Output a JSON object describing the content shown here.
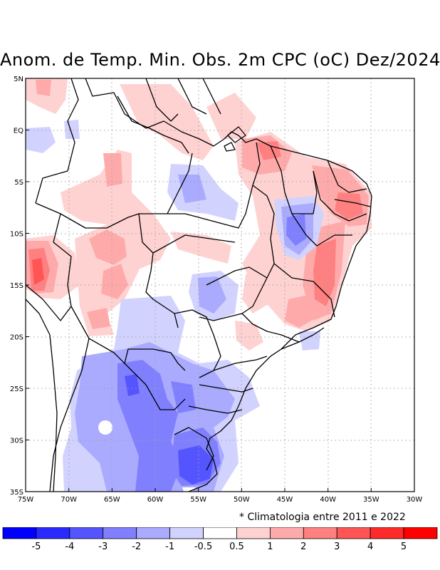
{
  "title": "Anom. de Temp. Min. Obs. 2m CPC (oC) Dez/2024",
  "note": "* Climatologia entre 2011 e 2022",
  "lat_ticks": [
    {
      "lat": 5,
      "label": "5N"
    },
    {
      "lat": 0,
      "label": "EQ"
    },
    {
      "lat": -5,
      "label": "5S"
    },
    {
      "lat": -10,
      "label": "10S"
    },
    {
      "lat": -15,
      "label": "15S"
    },
    {
      "lat": -20,
      "label": "20S"
    },
    {
      "lat": -25,
      "label": "25S"
    },
    {
      "lat": -30,
      "label": "30S"
    },
    {
      "lat": -35,
      "label": "35S"
    }
  ],
  "lon_ticks": [
    {
      "lon": -75,
      "label": "75W"
    },
    {
      "lon": -70,
      "label": "70W"
    },
    {
      "lon": -65,
      "label": "65W"
    },
    {
      "lon": -60,
      "label": "60W"
    },
    {
      "lon": -55,
      "label": "55W"
    },
    {
      "lon": -50,
      "label": "50W"
    },
    {
      "lon": -45,
      "label": "45W"
    },
    {
      "lon": -40,
      "label": "40W"
    },
    {
      "lon": -35,
      "label": "35W"
    },
    {
      "lon": -30,
      "label": "30W"
    }
  ],
  "colorbar": {
    "colors": [
      "#0000ff",
      "#2a2aff",
      "#5555ff",
      "#8080ff",
      "#aaaaff",
      "#d2d2ff",
      "#ffffff",
      "#ffd2d2",
      "#ffaaaa",
      "#ff8080",
      "#ff5555",
      "#ff2a2a",
      "#ff0000"
    ],
    "labels": [
      "-5",
      "-4",
      "-3",
      "-2",
      "-1",
      "-0.5",
      "0.5",
      "1",
      "2",
      "3",
      "4",
      "5"
    ]
  },
  "anomaly_regions": [
    {
      "region": "north-amazon-warm",
      "value": 1.5
    },
    {
      "region": "northeast-coast-warm",
      "value": 2.5
    },
    {
      "region": "bahia-east-warm",
      "value": 3
    },
    {
      "region": "peru-west-warm",
      "value": 3.5
    },
    {
      "region": "bolivia-warm",
      "value": 2
    },
    {
      "region": "tocantins-cool",
      "value": -2.5
    },
    {
      "region": "amazon-central-cool",
      "value": -1.5
    },
    {
      "region": "mato-grosso-sul-cool",
      "value": -2
    },
    {
      "region": "paraguay-cool",
      "value": -2.5
    },
    {
      "region": "uruguay-cool",
      "value": -3.5
    }
  ]
}
